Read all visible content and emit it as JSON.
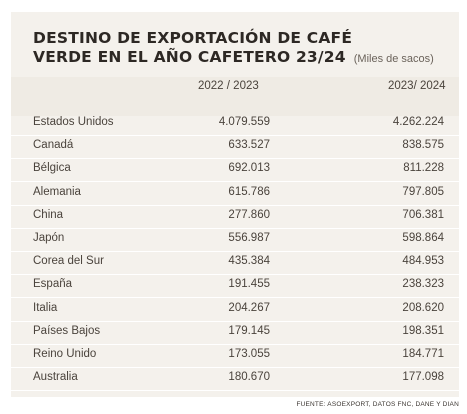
{
  "title": {
    "line1": "DESTINO DE EXPORTACIÓN DE CAFÉ",
    "line2": "VERDE EN EL AÑO CAFETERO 23/24",
    "units": "(Miles de sacos)"
  },
  "columns": [
    "2022 / 2023",
    "2023/ 2024"
  ],
  "rows": [
    {
      "country": "Estados Unidos",
      "v2022_2023": "4.079.559",
      "v2023_2024": "4.262.224"
    },
    {
      "country": "Canadá",
      "v2022_2023": "633.527",
      "v2023_2024": "838.575"
    },
    {
      "country": "Bélgica",
      "v2022_2023": "692.013",
      "v2023_2024": "811.228"
    },
    {
      "country": "Alemania",
      "v2022_2023": "615.786",
      "v2023_2024": "797.805"
    },
    {
      "country": "China",
      "v2022_2023": "277.860",
      "v2023_2024": "706.381"
    },
    {
      "country": "Japón",
      "v2022_2023": "556.987",
      "v2023_2024": "598.864"
    },
    {
      "country": "Corea del Sur",
      "v2022_2023": "435.384",
      "v2023_2024": "484.953"
    },
    {
      "country": "España",
      "v2022_2023": "191.455",
      "v2023_2024": "238.323"
    },
    {
      "country": "Italia",
      "v2022_2023": "204.267",
      "v2023_2024": "208.620"
    },
    {
      "country": "Países Bajos",
      "v2022_2023": "179.145",
      "v2023_2024": "198.351"
    },
    {
      "country": "Reino Unido",
      "v2022_2023": "173.055",
      "v2023_2024": "184.771"
    },
    {
      "country": "Australia",
      "v2022_2023": "180.670",
      "v2023_2024": "177.098"
    }
  ],
  "source": "FUENTE: ASOEXPORT, DATOS FNC, DANE Y DIAN",
  "colors": {
    "panel_background": "#f4f1ec",
    "header_band": "#efebe4",
    "text": "#4a433c",
    "title": "#2d2824"
  }
}
